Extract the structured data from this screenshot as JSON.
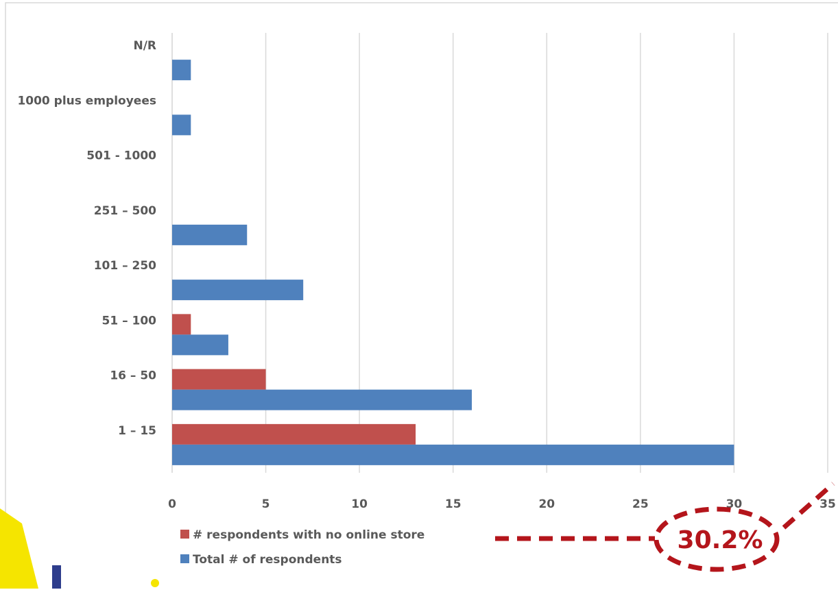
{
  "chart_data": {
    "type": "bar",
    "orientation": "horizontal",
    "categories": [
      "N/R",
      "1000 plus employees",
      "501 - 1000",
      "251 – 500",
      "101 – 250",
      "51 – 100",
      "16 – 50",
      "1 – 15"
    ],
    "series": [
      {
        "name": "# respondents with no online store",
        "color": "#c0504d",
        "values": [
          0,
          0,
          0,
          0,
          0,
          1,
          5,
          13
        ]
      },
      {
        "name": "Total # of respondents",
        "color": "#4f81bd",
        "values": [
          1,
          1,
          0,
          4,
          7,
          3,
          16,
          30
        ]
      }
    ],
    "xticks": [
      0,
      5,
      10,
      15,
      20,
      25,
      30,
      35
    ],
    "xlim": [
      0,
      35
    ],
    "grid": "vertical",
    "legend_position": "bottom-left",
    "title": "",
    "xlabel": "",
    "ylabel": ""
  },
  "annotation": {
    "callout_text": "30.2%",
    "callout_color": "#b4151b"
  },
  "colors": {
    "accent_yellow": "#f5e500",
    "logo_navy": "#2e3d8c",
    "frame_border": "#d9d9d9",
    "gridline": "#d9d9d9"
  },
  "decor": {
    "logo_icon": "partial-logo-icon",
    "accent_icon": "yellow-swoosh-icon"
  }
}
